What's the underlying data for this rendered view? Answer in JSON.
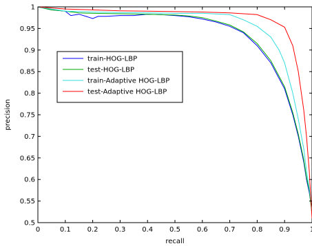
{
  "chart_data": {
    "type": "line",
    "title": "",
    "xlabel": "recall",
    "ylabel": "precision",
    "xlim": [
      0,
      1
    ],
    "ylim": [
      0.5,
      1
    ],
    "grid": false,
    "legend_position": "center-left",
    "x_ticks": [
      "0",
      "0.1",
      "0.2",
      "0.3",
      "0.4",
      "0.5",
      "0.6",
      "0.7",
      "0.8",
      "0.9",
      "1"
    ],
    "y_ticks": [
      "0.5",
      "0.55",
      "0.6",
      "0.65",
      "0.7",
      "0.75",
      "0.8",
      "0.85",
      "0.9",
      "0.95",
      "1"
    ],
    "series": [
      {
        "name": "train-HOG-LBP",
        "color": "#0000ff",
        "x": [
          0,
          0.05,
          0.1,
          0.12,
          0.15,
          0.18,
          0.2,
          0.22,
          0.25,
          0.3,
          0.35,
          0.4,
          0.45,
          0.5,
          0.55,
          0.6,
          0.65,
          0.7,
          0.75,
          0.8,
          0.85,
          0.9,
          0.93,
          0.95,
          0.97,
          0.98,
          0.99,
          1.0
        ],
        "y": [
          1.0,
          0.993,
          0.99,
          0.98,
          0.983,
          0.977,
          0.973,
          0.978,
          0.978,
          0.98,
          0.98,
          0.983,
          0.982,
          0.98,
          0.977,
          0.972,
          0.965,
          0.955,
          0.94,
          0.91,
          0.87,
          0.81,
          0.75,
          0.7,
          0.64,
          0.6,
          0.57,
          0.53
        ]
      },
      {
        "name": "test-HOG-LBP",
        "color": "#00aa00",
        "x": [
          0,
          0.05,
          0.1,
          0.15,
          0.2,
          0.3,
          0.4,
          0.5,
          0.55,
          0.6,
          0.65,
          0.7,
          0.75,
          0.8,
          0.85,
          0.9,
          0.93,
          0.95,
          0.97,
          0.98,
          0.99,
          1.0
        ],
        "y": [
          1.0,
          0.993,
          0.99,
          0.986,
          0.985,
          0.984,
          0.983,
          0.981,
          0.979,
          0.975,
          0.967,
          0.958,
          0.942,
          0.915,
          0.875,
          0.815,
          0.755,
          0.705,
          0.645,
          0.605,
          0.575,
          0.52
        ]
      },
      {
        "name": "train-Adaptive HOG-LBP",
        "color": "#33dddd",
        "x": [
          0,
          0.1,
          0.2,
          0.3,
          0.4,
          0.5,
          0.6,
          0.7,
          0.75,
          0.8,
          0.85,
          0.88,
          0.9,
          0.93,
          0.95,
          0.97,
          0.98,
          0.99,
          1.0
        ],
        "y": [
          1.0,
          0.99,
          0.988,
          0.987,
          0.986,
          0.985,
          0.985,
          0.982,
          0.97,
          0.955,
          0.93,
          0.9,
          0.87,
          0.8,
          0.74,
          0.67,
          0.62,
          0.58,
          0.53
        ]
      },
      {
        "name": "test-Adaptive HOG-LBP",
        "color": "#ff0000",
        "x": [
          0,
          0.1,
          0.2,
          0.3,
          0.4,
          0.5,
          0.6,
          0.7,
          0.8,
          0.85,
          0.9,
          0.93,
          0.95,
          0.97,
          0.98,
          0.99,
          1.0
        ],
        "y": [
          1.0,
          0.995,
          0.993,
          0.991,
          0.99,
          0.989,
          0.988,
          0.986,
          0.982,
          0.97,
          0.953,
          0.91,
          0.85,
          0.76,
          0.7,
          0.62,
          0.51
        ]
      }
    ]
  }
}
